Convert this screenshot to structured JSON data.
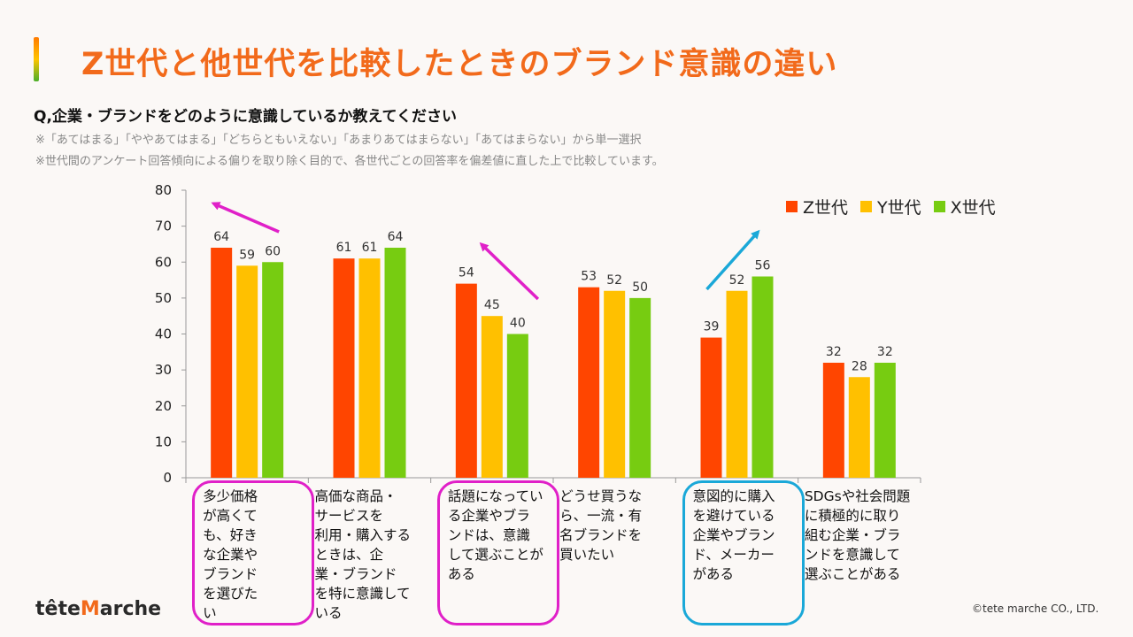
{
  "header": {
    "title": "Z世代と他世代を比較したときのブランド意識の違い",
    "question": "Q,企業・ブランドをどのように意識しているか教えてください",
    "note1": "※「あてはまる」「ややあてはまる」「どちらともいえない」「あまりあてはまらない」「あてはまらない」から単一選択",
    "note2": "※世代間のアンケート回答傾向による偏りを取り除く目的で、各世代ごとの回答率を偏差値に直した上で比較しています。"
  },
  "chart_data": {
    "type": "bar",
    "title": "",
    "xlabel": "",
    "ylabel": "",
    "ylim": [
      0,
      80
    ],
    "yticks": [
      0,
      10,
      20,
      30,
      40,
      50,
      60,
      70,
      80
    ],
    "categories": [
      "多少価格が高くても、好きな企業やブランドを選びたい",
      "高価な商品・サービスを利用・購入するときは、企業・ブランドを特に意識している",
      "話題になっている企業やブランドは、意識して選ぶことがある",
      "どうせ買うなら、一流・有名ブランドを買いたい",
      "意図的に購入を避けている企業やブランド、メーカーがある",
      "SDGsや社会問題に積極的に取り組む企業・ブランドを意識して選ぶことがある"
    ],
    "series": [
      {
        "name": "Z世代",
        "color": "#ff4500",
        "values": [
          64,
          61,
          54,
          53,
          39,
          32
        ]
      },
      {
        "name": "Y世代",
        "color": "#ffc000",
        "values": [
          59,
          61,
          45,
          52,
          52,
          28
        ]
      },
      {
        "name": "X世代",
        "color": "#77cc11",
        "values": [
          60,
          64,
          40,
          50,
          56,
          32
        ]
      }
    ],
    "legend_position": "top-right"
  },
  "highlights": [
    {
      "category_index": 0,
      "color": "#e020c8",
      "arrow": "up-left"
    },
    {
      "category_index": 2,
      "color": "#e020c8",
      "arrow": "up-left"
    },
    {
      "category_index": 4,
      "color": "#1aa8d8",
      "arrow": "up-right"
    }
  ],
  "category_label_lines": [
    [
      "多少価格",
      "が高くて",
      "も、好き",
      "な企業や",
      "ブランド",
      "を選びた",
      "い"
    ],
    [
      "高価な商品・",
      "サービスを",
      "利用・購入する",
      "ときは、企",
      "業・ブランド",
      "を特に意識して",
      "いる"
    ],
    [
      "話題になってい",
      "る企業やブラ",
      "ンドは、意識",
      "して選ぶことが",
      "ある"
    ],
    [
      "どうせ買うな",
      "ら、一流・有",
      "名ブランドを",
      "買いたい"
    ],
    [
      "意図的に購入",
      "を避けている",
      "企業やブラン",
      "ド、メーカー",
      "がある"
    ],
    [
      "SDGsや社会問題",
      "に積極的に取り",
      "組む企業・ブラ",
      "ンドを意識して",
      "選ぶことがある"
    ]
  ],
  "footer": {
    "logo_prefix": "tête",
    "logo_m": "M",
    "logo_suffix": "arche",
    "copyright": "©tete marche CO., LTD."
  }
}
